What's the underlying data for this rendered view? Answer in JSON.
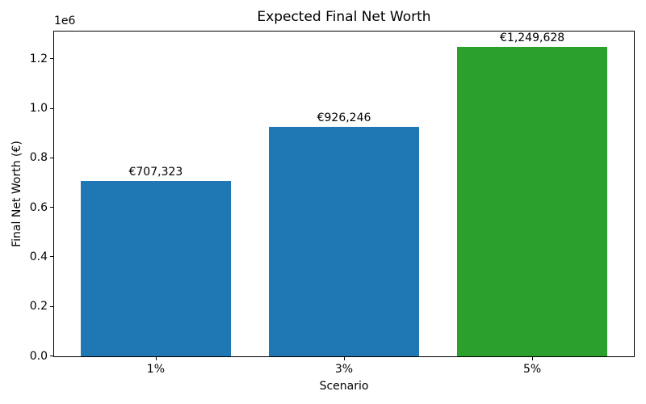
{
  "chart_data": {
    "type": "bar",
    "title": "Expected Final Net Worth",
    "xlabel": "Scenario",
    "ylabel": "Final Net Worth (€)",
    "offset_label": "1e6",
    "categories": [
      "1%",
      "3%",
      "5%"
    ],
    "values": [
      707323,
      926246,
      1249628
    ],
    "value_labels": [
      "€707,323",
      "€926,246",
      "€1,249,628"
    ],
    "bar_colors": [
      "#1f77b4",
      "#1f77b4",
      "#2ca02c"
    ],
    "colors": {
      "blue_bar": "#1f77b4",
      "green_bar": "#2ca02c",
      "axis": "#000000",
      "background": "#ffffff"
    },
    "y_ticks": {
      "labels": [
        "0.0",
        "0.2",
        "0.4",
        "0.6",
        "0.8",
        "1.0",
        "1.2"
      ],
      "values": [
        0,
        200000,
        400000,
        600000,
        800000,
        1000000,
        1200000
      ]
    },
    "ylim": [
      0,
      1312000
    ],
    "bar_width_fraction": 0.8,
    "x_margin": 0.54,
    "grid": false,
    "legend": null
  }
}
